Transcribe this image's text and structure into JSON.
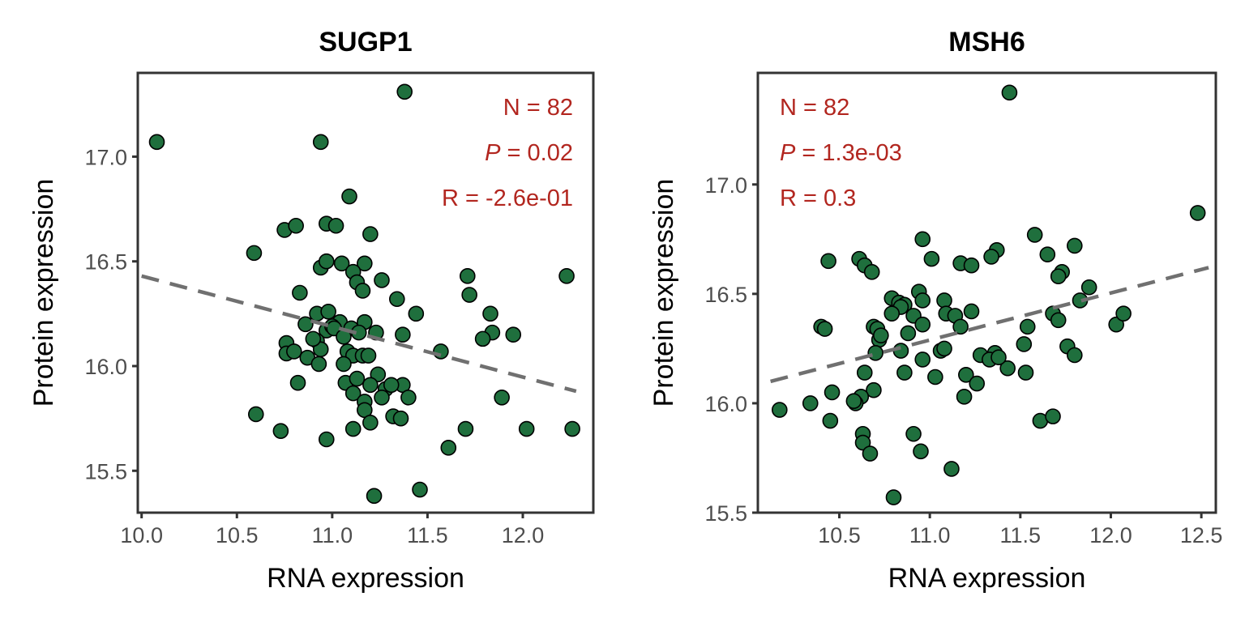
{
  "chart_data": [
    {
      "type": "scatter",
      "title": "SUGP1",
      "xlabel": "RNA expression",
      "ylabel": "Protein expression",
      "xlim": [
        9.98,
        12.37
      ],
      "ylim": [
        15.3,
        17.4
      ],
      "xticks": [
        "10.0",
        "10.5",
        "11.0",
        "11.5",
        "12.0"
      ],
      "yticks": [
        "15.5",
        "16.0",
        "16.5",
        "17.0"
      ],
      "stats_align": "top-right",
      "stats": {
        "n": "N = 82",
        "p_symbol": "P",
        "p_value": " = 0.02",
        "r": "R = -2.6e-01"
      },
      "trend": [
        [
          10.0,
          16.43
        ],
        [
          12.28,
          15.88
        ]
      ],
      "point_color": "#1f6f3d",
      "stat_color": "#b2261f",
      "points": [
        [
          10.08,
          17.07
        ],
        [
          11.38,
          17.31
        ],
        [
          10.94,
          17.07
        ],
        [
          11.09,
          16.81
        ],
        [
          10.97,
          16.68
        ],
        [
          11.02,
          16.67
        ],
        [
          10.75,
          16.65
        ],
        [
          10.81,
          16.67
        ],
        [
          11.2,
          16.63
        ],
        [
          10.59,
          16.54
        ],
        [
          11.71,
          16.43
        ],
        [
          12.23,
          16.43
        ],
        [
          10.94,
          16.47
        ],
        [
          10.97,
          16.5
        ],
        [
          11.05,
          16.49
        ],
        [
          11.17,
          16.49
        ],
        [
          11.11,
          16.45
        ],
        [
          11.13,
          16.4
        ],
        [
          11.26,
          16.41
        ],
        [
          11.72,
          16.34
        ],
        [
          11.16,
          16.36
        ],
        [
          10.83,
          16.35
        ],
        [
          11.34,
          16.32
        ],
        [
          11.44,
          16.25
        ],
        [
          11.83,
          16.25
        ],
        [
          10.92,
          16.25
        ],
        [
          10.98,
          16.26
        ],
        [
          11.17,
          16.21
        ],
        [
          10.86,
          16.2
        ],
        [
          11.04,
          16.21
        ],
        [
          11.1,
          16.18
        ],
        [
          10.97,
          16.17
        ],
        [
          11.14,
          16.16
        ],
        [
          11.23,
          16.16
        ],
        [
          11.37,
          16.15
        ],
        [
          11.84,
          16.16
        ],
        [
          11.95,
          16.15
        ],
        [
          11.79,
          16.13
        ],
        [
          10.92,
          16.12
        ],
        [
          10.76,
          16.11
        ],
        [
          10.94,
          16.08
        ],
        [
          11.08,
          16.07
        ],
        [
          11.57,
          16.07
        ],
        [
          10.76,
          16.06
        ],
        [
          10.8,
          16.07
        ],
        [
          10.87,
          16.04
        ],
        [
          11.11,
          16.05
        ],
        [
          11.16,
          16.05
        ],
        [
          10.93,
          16.01
        ],
        [
          11.06,
          16.01
        ],
        [
          11.24,
          15.96
        ],
        [
          10.82,
          15.92
        ],
        [
          11.07,
          15.92
        ],
        [
          11.13,
          15.94
        ],
        [
          11.2,
          15.91
        ],
        [
          11.28,
          15.89
        ],
        [
          11.37,
          15.91
        ],
        [
          11.31,
          15.91
        ],
        [
          11.11,
          15.87
        ],
        [
          11.26,
          15.85
        ],
        [
          11.4,
          15.85
        ],
        [
          11.89,
          15.85
        ],
        [
          11.17,
          15.83
        ],
        [
          11.17,
          15.79
        ],
        [
          10.6,
          15.77
        ],
        [
          11.32,
          15.76
        ],
        [
          11.36,
          15.75
        ],
        [
          11.2,
          15.73
        ],
        [
          11.11,
          15.7
        ],
        [
          10.73,
          15.69
        ],
        [
          11.7,
          15.7
        ],
        [
          12.02,
          15.7
        ],
        [
          12.26,
          15.7
        ],
        [
          10.97,
          15.65
        ],
        [
          11.61,
          15.61
        ],
        [
          11.22,
          15.38
        ],
        [
          11.46,
          15.41
        ],
        [
          11.0,
          16.19
        ],
        [
          11.19,
          16.05
        ],
        [
          10.9,
          16.13
        ],
        [
          11.01,
          16.18
        ],
        [
          11.06,
          16.14
        ]
      ]
    },
    {
      "type": "scatter",
      "title": "MSH6",
      "xlabel": "RNA expression",
      "ylabel": "Protein expression",
      "xlim": [
        10.05,
        12.58
      ],
      "ylim": [
        15.5,
        17.51
      ],
      "xticks": [
        "10.5",
        "11.0",
        "11.5",
        "12.0",
        "12.5"
      ],
      "yticks": [
        "15.5",
        "16.0",
        "16.5",
        "17.0"
      ],
      "stats_align": "top-left",
      "stats": {
        "n": "N = 82",
        "p_symbol": "P",
        "p_value": " = 1.3e-03",
        "r": "R = 0.3"
      },
      "trend": [
        [
          10.12,
          16.1
        ],
        [
          12.54,
          16.62
        ]
      ],
      "point_color": "#1f6f3d",
      "stat_color": "#b2261f",
      "points": [
        [
          11.44,
          17.42
        ],
        [
          12.48,
          16.87
        ],
        [
          10.44,
          16.65
        ],
        [
          10.61,
          16.66
        ],
        [
          10.64,
          16.63
        ],
        [
          10.68,
          16.6
        ],
        [
          10.96,
          16.75
        ],
        [
          11.01,
          16.66
        ],
        [
          11.37,
          16.7
        ],
        [
          11.34,
          16.67
        ],
        [
          11.58,
          16.77
        ],
        [
          11.65,
          16.68
        ],
        [
          11.8,
          16.72
        ],
        [
          11.17,
          16.64
        ],
        [
          11.23,
          16.63
        ],
        [
          11.73,
          16.6
        ],
        [
          11.71,
          16.58
        ],
        [
          11.88,
          16.53
        ],
        [
          10.79,
          16.48
        ],
        [
          10.83,
          16.46
        ],
        [
          10.86,
          16.45
        ],
        [
          10.84,
          16.44
        ],
        [
          10.94,
          16.51
        ],
        [
          10.96,
          16.47
        ],
        [
          11.08,
          16.47
        ],
        [
          10.91,
          16.4
        ],
        [
          10.96,
          16.36
        ],
        [
          11.09,
          16.41
        ],
        [
          11.14,
          16.4
        ],
        [
          11.23,
          16.42
        ],
        [
          11.68,
          16.41
        ],
        [
          11.71,
          16.38
        ],
        [
          11.83,
          16.47
        ],
        [
          12.03,
          16.36
        ],
        [
          12.07,
          16.41
        ],
        [
          10.4,
          16.35
        ],
        [
          10.42,
          16.34
        ],
        [
          10.69,
          16.35
        ],
        [
          10.71,
          16.34
        ],
        [
          10.72,
          16.29
        ],
        [
          10.88,
          16.32
        ],
        [
          11.17,
          16.35
        ],
        [
          11.54,
          16.35
        ],
        [
          11.76,
          16.26
        ],
        [
          11.8,
          16.22
        ],
        [
          11.52,
          16.27
        ],
        [
          10.7,
          16.23
        ],
        [
          10.84,
          16.24
        ],
        [
          10.96,
          16.2
        ],
        [
          11.06,
          16.24
        ],
        [
          11.08,
          16.25
        ],
        [
          11.28,
          16.22
        ],
        [
          11.36,
          16.23
        ],
        [
          11.33,
          16.2
        ],
        [
          10.64,
          16.14
        ],
        [
          10.86,
          16.14
        ],
        [
          11.03,
          16.12
        ],
        [
          11.2,
          16.13
        ],
        [
          11.43,
          16.16
        ],
        [
          11.53,
          16.14
        ],
        [
          11.26,
          16.09
        ],
        [
          10.69,
          16.06
        ],
        [
          10.46,
          16.05
        ],
        [
          10.62,
          16.03
        ],
        [
          10.59,
          16.0
        ],
        [
          11.19,
          16.03
        ],
        [
          10.17,
          15.97
        ],
        [
          10.34,
          16.0
        ],
        [
          10.45,
          15.92
        ],
        [
          11.61,
          15.92
        ],
        [
          11.68,
          15.94
        ],
        [
          10.63,
          15.86
        ],
        [
          10.63,
          15.82
        ],
        [
          10.91,
          15.86
        ],
        [
          10.67,
          15.77
        ],
        [
          10.95,
          15.78
        ],
        [
          11.12,
          15.7
        ],
        [
          10.8,
          15.57
        ],
        [
          10.58,
          16.01
        ],
        [
          10.73,
          16.31
        ],
        [
          10.79,
          16.41
        ],
        [
          11.38,
          16.21
        ]
      ]
    }
  ]
}
